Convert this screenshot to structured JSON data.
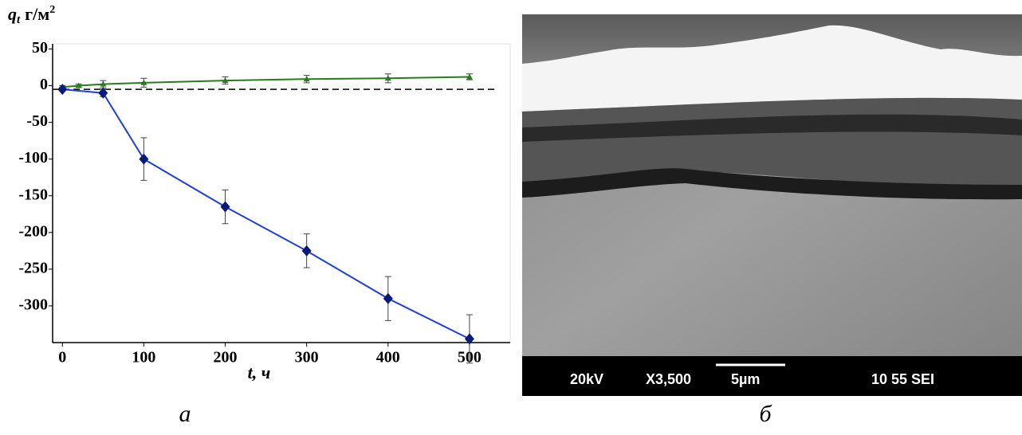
{
  "chart_data": {
    "type": "line",
    "ylabel_symbol": "q",
    "ylabel_subscript": "t",
    "ylabel_unit": "г/м",
    "ylabel_power": "2",
    "xlabel_symbol": "t,",
    "xlabel_unit": "ч",
    "xlim": [
      -12,
      550
    ],
    "xticks": [
      0,
      100,
      200,
      300,
      400,
      500
    ],
    "ylim": [
      -350,
      57
    ],
    "yticks": [
      50,
      0,
      -50,
      -100,
      -150,
      -200,
      -250,
      -300
    ],
    "baseline": -5,
    "series": [
      {
        "color": "#2a7a1f",
        "marker": "triangle",
        "x": [
          0,
          20,
          50,
          100,
          200,
          300,
          400,
          500
        ],
        "values": [
          -2,
          0,
          2,
          4,
          7,
          9,
          10,
          12
        ],
        "errors": [
          2,
          2,
          5,
          6,
          5,
          5,
          6,
          4
        ]
      },
      {
        "color": "#1f3fd6",
        "marker": "diamond",
        "x": [
          0,
          50,
          100,
          200,
          300,
          400,
          500
        ],
        "values": [
          -5,
          -10,
          -100,
          -165,
          -225,
          -290,
          -345
        ],
        "errors": [
          2,
          5,
          29,
          23,
          23,
          30,
          33
        ]
      }
    ]
  },
  "captions": [
    "а",
    "б"
  ],
  "image": {
    "voltage": "20kV",
    "magnification": "X3,500",
    "scale": "5µm",
    "info": "10 55 SEI"
  }
}
